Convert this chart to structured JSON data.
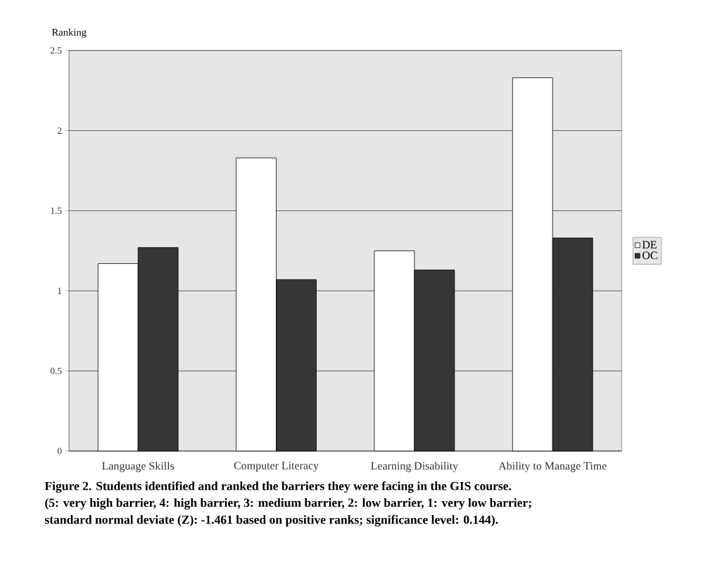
{
  "chart_data": {
    "type": "bar",
    "ylabel": "Ranking",
    "categories": [
      "Language Skills",
      "Computer Literacy",
      "Learning Disability",
      "Ability to Manage Time"
    ],
    "series": [
      {
        "name": "DE",
        "color": "#ffffff",
        "values": [
          1.17,
          1.83,
          1.25,
          2.33
        ]
      },
      {
        "name": "OC",
        "color": "#363636",
        "values": [
          1.27,
          1.07,
          1.13,
          1.33
        ]
      }
    ],
    "ylim": [
      0,
      2.5
    ],
    "yticks": [
      0,
      0.5,
      1,
      1.5,
      2,
      2.5
    ],
    "grid": "y",
    "legend": "right",
    "annotations": [
      "Figure 2.  Students identified and ranked the barriers they were facing in the GIS course.",
      "(5: very high barrier, 4: high barrier, 3: medium barrier, 2: low barrier, 1: very low barrier;",
      "standard normal deviate (Z): -1.461 based on positive ranks; significance level: 0.144)."
    ]
  }
}
